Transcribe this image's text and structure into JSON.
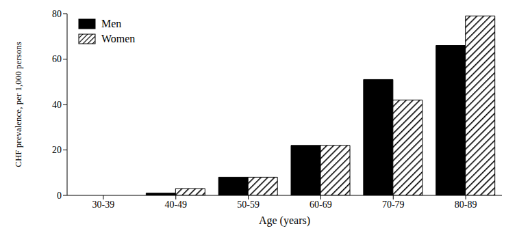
{
  "chart_data": {
    "type": "bar",
    "categories": [
      "30-39",
      "40-49",
      "50-59",
      "60-69",
      "70-79",
      "80-89"
    ],
    "series": [
      {
        "name": "Men",
        "color": "#000000",
        "values": [
          0,
          1,
          8,
          22,
          51,
          66
        ]
      },
      {
        "name": "Women",
        "color": "#000000",
        "values": [
          0,
          3,
          8,
          22,
          42,
          79
        ]
      }
    ],
    "x_label": "Age (years)",
    "y_label": "CHF prevalence, per 1,000 persons",
    "ylim": [
      0,
      80
    ],
    "yticks": [
      0,
      20,
      40,
      60,
      80
    ],
    "grid": false,
    "legend": "upper left"
  }
}
